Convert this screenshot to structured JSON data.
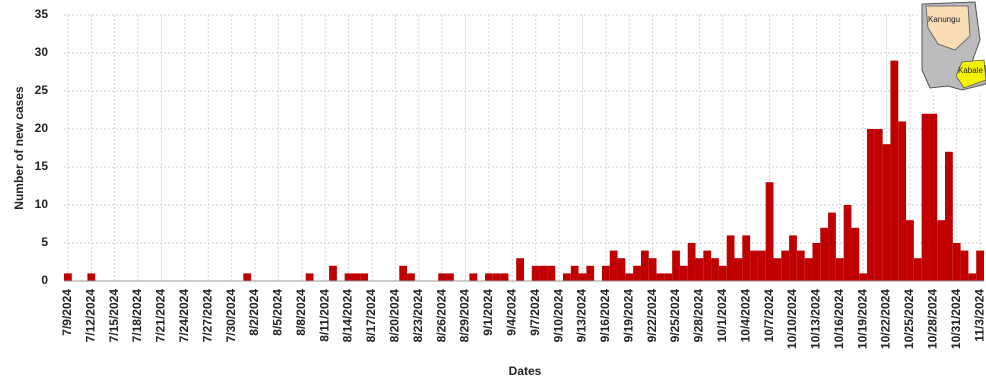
{
  "chart_data": {
    "type": "bar",
    "x_label": "Dates",
    "y_label": "Number of new cases",
    "color": "#c00000",
    "grid": true,
    "ylim": [
      0,
      35
    ],
    "yticks": [
      0,
      5,
      10,
      15,
      20,
      25,
      30,
      35
    ],
    "annotations": [
      "Kanungu",
      "Kabale"
    ],
    "categories": [
      "7/9/2024",
      null,
      null,
      "7/12/2024",
      null,
      null,
      "7/15/2024",
      null,
      null,
      "7/18/2024",
      null,
      null,
      "7/21/2024",
      null,
      null,
      "7/24/2024",
      null,
      null,
      "7/27/2024",
      null,
      null,
      "7/30/2024",
      null,
      null,
      "8/2/2024",
      null,
      null,
      "8/5/2024",
      null,
      null,
      "8/8/2024",
      null,
      null,
      "8/11/2024",
      null,
      null,
      "8/14/2024",
      null,
      null,
      "8/17/2024",
      null,
      null,
      "8/20/2024",
      null,
      null,
      "8/23/2024",
      null,
      null,
      "8/26/2024",
      null,
      null,
      "8/29/2024",
      null,
      null,
      "9/1/2024",
      null,
      null,
      "9/4/2024",
      null,
      null,
      "9/7/2024",
      null,
      null,
      "9/10/2024",
      null,
      null,
      "9/13/2024",
      null,
      null,
      "9/16/2024",
      null,
      null,
      "9/19/2024",
      null,
      null,
      "9/22/2024",
      null,
      null,
      "9/25/2024",
      null,
      null,
      "9/28/2024",
      null,
      null,
      "10/1/2024",
      null,
      null,
      "10/4/2024",
      null,
      null,
      "10/7/2024",
      null,
      null,
      "10/10/2024",
      null,
      null,
      "10/13/2024",
      null,
      null,
      "10/16/2024",
      null,
      null,
      "10/19/2024",
      null,
      null,
      "10/22/2024",
      null,
      null,
      "10/25/2024",
      null,
      null,
      "10/28/2024",
      null,
      null,
      "10/31/2024",
      null,
      null,
      "11/3/2024"
    ],
    "values": [
      1,
      0,
      0,
      1,
      0,
      0,
      0,
      0,
      0,
      0,
      0,
      0,
      0,
      0,
      0,
      0,
      0,
      0,
      0,
      0,
      0,
      0,
      0,
      1,
      0,
      0,
      0,
      0,
      0,
      0,
      0,
      1,
      0,
      0,
      2,
      0,
      1,
      1,
      1,
      0,
      0,
      0,
      0,
      2,
      1,
      0,
      0,
      0,
      1,
      1,
      0,
      0,
      1,
      0,
      1,
      1,
      1,
      0,
      3,
      0,
      2,
      2,
      2,
      0,
      1,
      2,
      1,
      2,
      0,
      2,
      4,
      3,
      1,
      2,
      4,
      3,
      1,
      1,
      4,
      2,
      5,
      3,
      4,
      3,
      2,
      6,
      3,
      6,
      4,
      4,
      13,
      3,
      4,
      6,
      4,
      3,
      5,
      7,
      9,
      3,
      10,
      7,
      1,
      20,
      20,
      18,
      29,
      21,
      8,
      3,
      22,
      22,
      8,
      17,
      5,
      4,
      1,
      4
    ]
  }
}
